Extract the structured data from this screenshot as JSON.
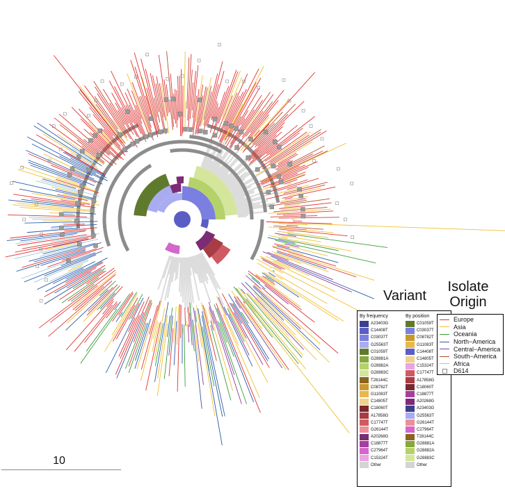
{
  "variant_legend": {
    "title": "Variant",
    "by_frequency_header": "By frequency",
    "by_position_header": "By position",
    "by_frequency": [
      {
        "label": "A23403G",
        "color": "#3b3f8c"
      },
      {
        "label": "C14408T",
        "color": "#5a5ec4"
      },
      {
        "label": "C03037T",
        "color": "#7b7fe0"
      },
      {
        "label": "G25563T",
        "color": "#a9acf0"
      },
      {
        "label": "C01059T",
        "color": "#5f7a2c"
      },
      {
        "label": "G28881A",
        "color": "#86a83c"
      },
      {
        "label": "G28882A",
        "color": "#b5d26a"
      },
      {
        "label": "G28883C",
        "color": "#d3e69c"
      },
      {
        "label": "T28144C",
        "color": "#8c6420"
      },
      {
        "label": "C08782T",
        "color": "#c8982c"
      },
      {
        "label": "G11083T",
        "color": "#e7b84a"
      },
      {
        "label": "C14805T",
        "color": "#efd08c"
      },
      {
        "label": "C18060T",
        "color": "#7a2830"
      },
      {
        "label": "A17858G",
        "color": "#a83c44"
      },
      {
        "label": "C17747T",
        "color": "#d05a62"
      },
      {
        "label": "G26144T",
        "color": "#ec9098"
      },
      {
        "label": "A20268G",
        "color": "#7c2c74"
      },
      {
        "label": "C18877T",
        "color": "#a63ea0"
      },
      {
        "label": "C27964T",
        "color": "#d466cc"
      },
      {
        "label": "C15324T",
        "color": "#eaa4e2"
      },
      {
        "label": "Other",
        "color": "#d4d4d4"
      }
    ],
    "by_position": [
      {
        "label": "C01059T",
        "color": "#5f7a2c"
      },
      {
        "label": "C03037T",
        "color": "#7b7fe0"
      },
      {
        "label": "C08782T",
        "color": "#c8982c"
      },
      {
        "label": "G11083T",
        "color": "#e7b84a"
      },
      {
        "label": "C14408T",
        "color": "#5a5ec4"
      },
      {
        "label": "C14805T",
        "color": "#efd08c"
      },
      {
        "label": "C15324T",
        "color": "#eaa4e2"
      },
      {
        "label": "C17747T",
        "color": "#d05a62"
      },
      {
        "label": "A17858G",
        "color": "#a83c44"
      },
      {
        "label": "C18060T",
        "color": "#7a2830"
      },
      {
        "label": "C18877T",
        "color": "#a63ea0"
      },
      {
        "label": "A20268G",
        "color": "#7c2c74"
      },
      {
        "label": "A23403G",
        "color": "#3b3f8c"
      },
      {
        "label": "G25563T",
        "color": "#a9acf0"
      },
      {
        "label": "G26144T",
        "color": "#ec9098"
      },
      {
        "label": "C27964T",
        "color": "#d466cc"
      },
      {
        "label": "T28144C",
        "color": "#8c6420"
      },
      {
        "label": "G28881A",
        "color": "#86a83c"
      },
      {
        "label": "G28882A",
        "color": "#b5d26a"
      },
      {
        "label": "G28883C",
        "color": "#d3e69c"
      },
      {
        "label": "Other",
        "color": "#d4d4d4"
      }
    ]
  },
  "origin_legend": {
    "title_line1": "Isolate",
    "title_line2": "Origin",
    "items": [
      {
        "label": "Europe",
        "color": "#e03030"
      },
      {
        "label": "Asia",
        "color": "#f0c030"
      },
      {
        "label": "Oceania",
        "color": "#3a9a3a"
      },
      {
        "label": "North−America",
        "color": "#2a5aa8"
      },
      {
        "label": "Central−America",
        "color": "#8a3a9a"
      },
      {
        "label": "South−America",
        "color": "#b84a2a"
      },
      {
        "label": "Africa",
        "color": "#a0c8d8"
      }
    ],
    "marker_label": "D614"
  },
  "scale_bar": {
    "label": "10"
  }
}
